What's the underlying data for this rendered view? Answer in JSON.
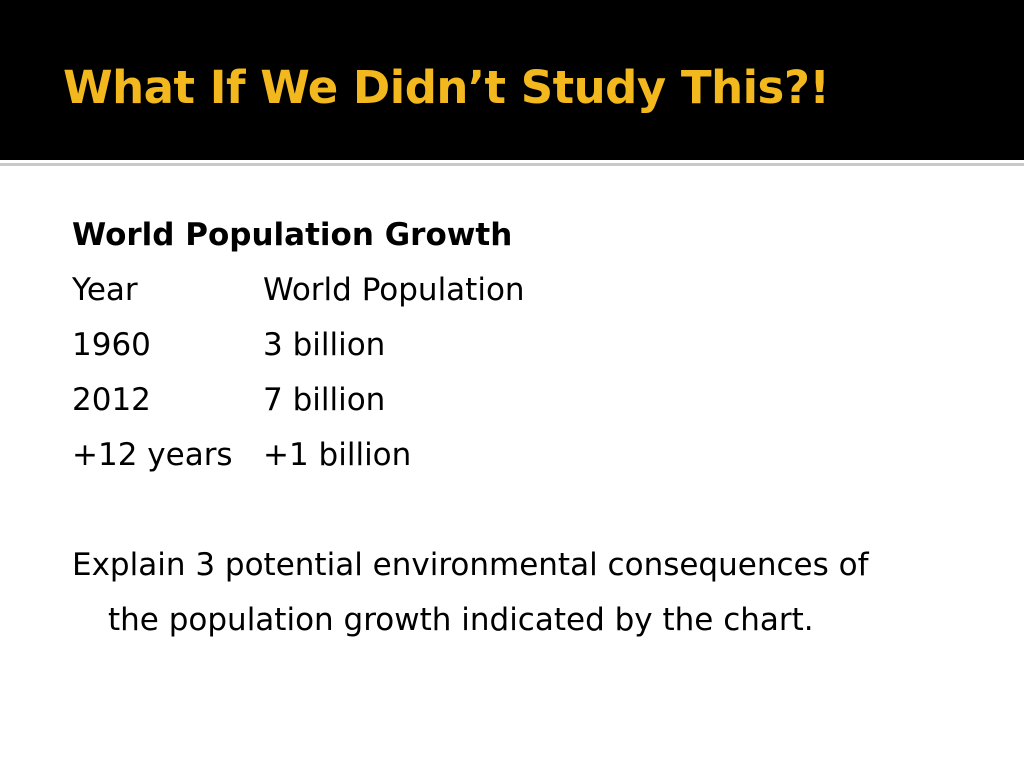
{
  "slide": {
    "title": "What If We Didn’t Study This?!",
    "section_heading": "World Population Growth",
    "table": {
      "headers": [
        "Year",
        "World Population"
      ],
      "rows": [
        [
          "1960",
          "3 billion"
        ],
        [
          "2012",
          "7 billion"
        ],
        [
          "+12 years",
          "+1 billion"
        ]
      ]
    },
    "prompt": "Explain 3 potential environmental consequences of the population growth indicated by the chart."
  },
  "colors": {
    "title_bar_background": "#000000",
    "title_text": "#f2b81d",
    "body_text": "#000000",
    "background": "#ffffff"
  }
}
